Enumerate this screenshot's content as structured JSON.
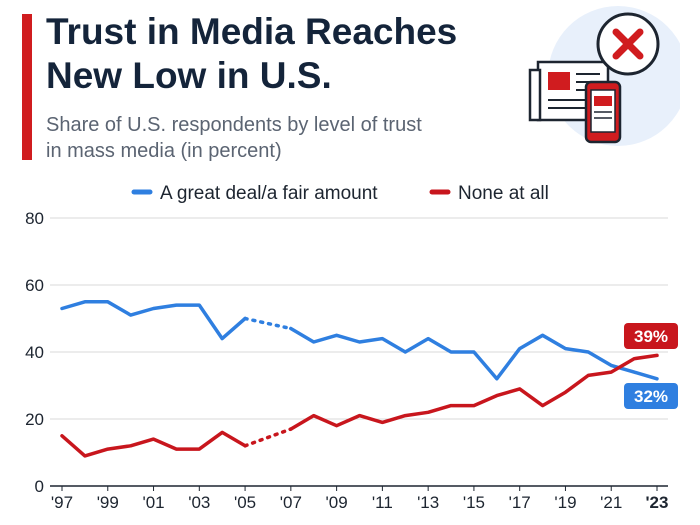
{
  "header": {
    "title_line1": "Trust in Media Reaches",
    "title_line2": "New Low in U.S.",
    "subtitle_line1": "Share of U.S. respondents by level of trust",
    "subtitle_line2": "in mass media (in percent)"
  },
  "colors": {
    "accent": "#d01c1f",
    "series_blue": "#2f7fe0",
    "series_red": "#c8161d",
    "grid": "#d8d8d8",
    "text": "#1d2530"
  },
  "icons": [
    "newspaper-icon",
    "smartphone-icon",
    "close-x-icon"
  ],
  "chart_data": {
    "type": "line",
    "title": "",
    "xlabel": "",
    "ylabel": "",
    "ylim": [
      0,
      80
    ],
    "xlim": [
      1997,
      2023
    ],
    "yticks": [
      "0",
      "20",
      "40",
      "60",
      "80"
    ],
    "xticks": [
      {
        "value": 1997,
        "label": "'97",
        "bold": false
      },
      {
        "value": 1999,
        "label": "'99",
        "bold": false
      },
      {
        "value": 2001,
        "label": "'01",
        "bold": false
      },
      {
        "value": 2003,
        "label": "'03",
        "bold": false
      },
      {
        "value": 2005,
        "label": "'05",
        "bold": false
      },
      {
        "value": 2007,
        "label": "'07",
        "bold": false
      },
      {
        "value": 2009,
        "label": "'09",
        "bold": false
      },
      {
        "value": 2011,
        "label": "'11",
        "bold": false
      },
      {
        "value": 2013,
        "label": "'13",
        "bold": false
      },
      {
        "value": 2015,
        "label": "'15",
        "bold": false
      },
      {
        "value": 2017,
        "label": "'17",
        "bold": false
      },
      {
        "value": 2019,
        "label": "'19",
        "bold": false
      },
      {
        "value": 2021,
        "label": "'21",
        "bold": false
      },
      {
        "value": 2023,
        "label": "'23",
        "bold": true
      }
    ],
    "grid": true,
    "legend_position": "top",
    "dotted_gap_years": [
      2005,
      2007
    ],
    "series": [
      {
        "name": "A great deal/a fair amount",
        "color": "#2f7fe0",
        "end_label": "32%",
        "points": [
          [
            1997,
            53
          ],
          [
            1998,
            55
          ],
          [
            1999,
            55
          ],
          [
            2000,
            51
          ],
          [
            2001,
            53
          ],
          [
            2002,
            54
          ],
          [
            2003,
            54
          ],
          [
            2004,
            44
          ],
          [
            2005,
            50
          ],
          [
            2007,
            47
          ],
          [
            2008,
            43
          ],
          [
            2009,
            45
          ],
          [
            2010,
            43
          ],
          [
            2011,
            44
          ],
          [
            2012,
            40
          ],
          [
            2013,
            44
          ],
          [
            2014,
            40
          ],
          [
            2015,
            40
          ],
          [
            2016,
            32
          ],
          [
            2017,
            41
          ],
          [
            2018,
            45
          ],
          [
            2019,
            41
          ],
          [
            2020,
            40
          ],
          [
            2021,
            36
          ],
          [
            2022,
            34
          ],
          [
            2023,
            32
          ]
        ]
      },
      {
        "name": "None at all",
        "color": "#c8161d",
        "end_label": "39%",
        "points": [
          [
            1997,
            15
          ],
          [
            1998,
            9
          ],
          [
            1999,
            11
          ],
          [
            2000,
            12
          ],
          [
            2001,
            14
          ],
          [
            2002,
            11
          ],
          [
            2003,
            11
          ],
          [
            2004,
            16
          ],
          [
            2005,
            12
          ],
          [
            2007,
            17
          ],
          [
            2008,
            21
          ],
          [
            2009,
            18
          ],
          [
            2010,
            21
          ],
          [
            2011,
            19
          ],
          [
            2012,
            21
          ],
          [
            2013,
            22
          ],
          [
            2014,
            24
          ],
          [
            2015,
            24
          ],
          [
            2016,
            27
          ],
          [
            2017,
            29
          ],
          [
            2018,
            24
          ],
          [
            2019,
            28
          ],
          [
            2020,
            33
          ],
          [
            2021,
            34
          ],
          [
            2022,
            38
          ],
          [
            2023,
            39
          ]
        ]
      }
    ]
  }
}
